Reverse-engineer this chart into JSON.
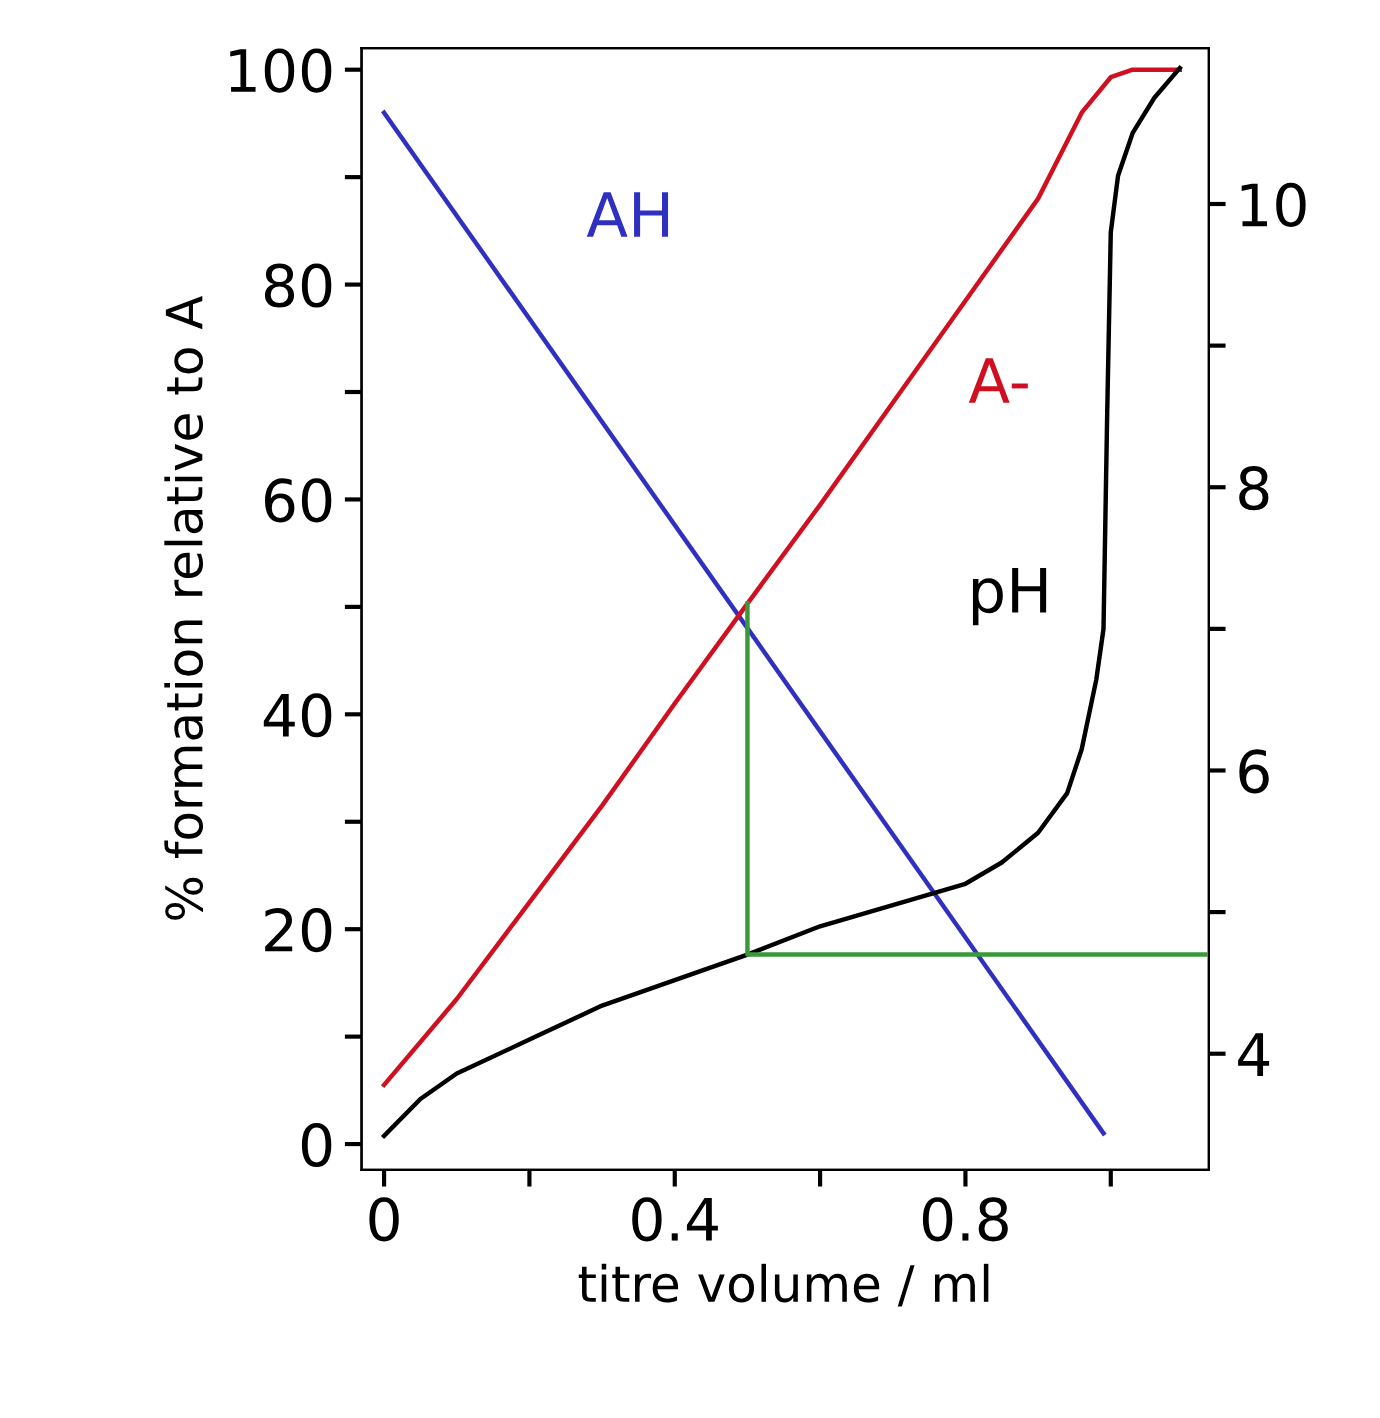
{
  "chart_data": {
    "type": "line",
    "xlabel": "titre volume / ml",
    "ylabel": "% formation relative to A",
    "xlim": [
      -0.031,
      1.135
    ],
    "ylim": [
      -2.4,
      102
    ],
    "y2lim": [
      3.18,
      11.1
    ],
    "xticks": [
      0,
      {
        "value": 0.2,
        "label": null
      },
      {
        "value": 0.4,
        "label": "0.4"
      },
      {
        "value": 0.6,
        "label": null
      },
      {
        "value": 0.8,
        "label": "0.8"
      },
      {
        "value": 1.0,
        "label": null
      }
    ],
    "yticks": [
      0,
      {
        "value": 10,
        "label": null
      },
      20,
      {
        "value": 30,
        "label": null
      },
      40,
      {
        "value": 50,
        "label": null
      },
      60,
      {
        "value": 70,
        "label": null
      },
      80,
      {
        "value": 90,
        "label": null
      },
      100
    ],
    "y2ticks": [
      4,
      {
        "value": 5,
        "label": null
      },
      6,
      {
        "value": 7,
        "label": null
      },
      8,
      {
        "value": 9,
        "label": null
      },
      10
    ],
    "grid": false,
    "legend": false,
    "series": [
      {
        "name": "AH",
        "color": "#3030c0",
        "x": [
          0,
          0.99
        ],
        "values": [
          96,
          1
        ]
      },
      {
        "name": "A-",
        "color": "#d01020",
        "x": [
          0,
          0.1,
          0.2,
          0.3,
          0.4,
          0.5,
          0.6,
          0.7,
          0.8,
          0.9,
          0.96,
          1.0,
          1.03,
          1.095
        ],
        "values": [
          5.5,
          13.5,
          22.5,
          31.5,
          41,
          50.3,
          59.5,
          69,
          78.5,
          88,
          96,
          99.3,
          100,
          100
        ]
      },
      {
        "name": "pH",
        "color": "#000000",
        "axis": "y2",
        "x": [
          0,
          0.05,
          0.1,
          0.2,
          0.3,
          0.4,
          0.5,
          0.6,
          0.7,
          0.8,
          0.85,
          0.9,
          0.94,
          0.96,
          0.98,
          0.99,
          0.995,
          1.0,
          1.01,
          1.03,
          1.06,
          1.095
        ],
        "values": [
          3.42,
          3.68,
          3.86,
          4.1,
          4.34,
          4.52,
          4.7,
          4.9,
          5.05,
          5.2,
          5.35,
          5.56,
          5.84,
          6.15,
          6.64,
          7.0,
          8.5,
          9.8,
          10.2,
          10.5,
          10.75,
          10.96
        ]
      },
      {
        "color": "#3a9a3a",
        "axis": "y2",
        "x": [
          0.5,
          0.5,
          1.13
        ],
        "values": [
          7.18,
          4.7,
          4.7
        ]
      }
    ]
  }
}
